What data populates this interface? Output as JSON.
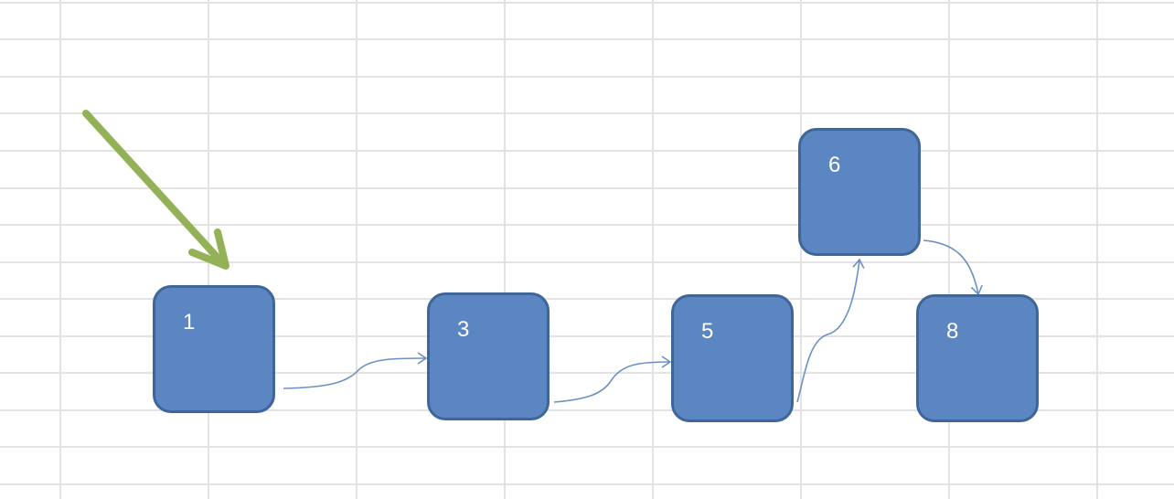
{
  "diagram": {
    "nodes": [
      {
        "id": "n1",
        "label": "1"
      },
      {
        "id": "n3",
        "label": "3"
      },
      {
        "id": "n5",
        "label": "5"
      },
      {
        "id": "n6",
        "label": "6"
      },
      {
        "id": "n8",
        "label": "8"
      }
    ],
    "edges": [
      {
        "from": "1",
        "to": "3"
      },
      {
        "from": "3",
        "to": "5"
      },
      {
        "from": "5",
        "to": "6"
      },
      {
        "from": "6",
        "to": "8"
      }
    ],
    "pointer": {
      "target": "1"
    },
    "colors": {
      "node_fill": "#5b86c1",
      "node_border": "#3f6699",
      "node_text": "#ffffff",
      "edge": "#6d90c4",
      "pointer_arrow": "#93b156",
      "grid": "#e3e3e3"
    }
  }
}
